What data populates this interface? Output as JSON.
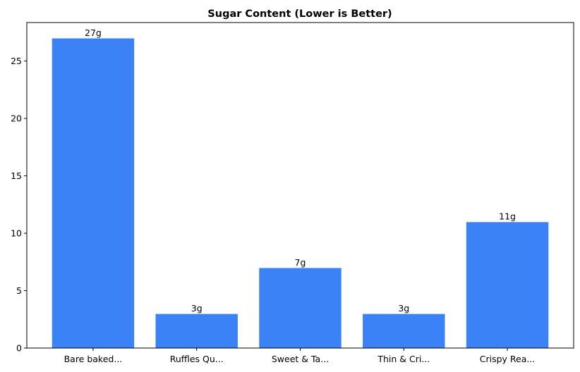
{
  "chart_data": {
    "type": "bar",
    "title": "Sugar Content (Lower is Better)",
    "xlabel": "",
    "ylabel": "",
    "categories": [
      "Bare baked...",
      "Ruffles Qu...",
      "Sweet & Ta...",
      "Thin & Cri...",
      "Crispy Rea..."
    ],
    "values": [
      27,
      3,
      7,
      3,
      11
    ],
    "data_labels": [
      "27g",
      "3g",
      "7g",
      "3g",
      "11g"
    ],
    "ylim": [
      0,
      28.35
    ],
    "yticks": [
      0,
      5,
      10,
      15,
      20,
      25
    ],
    "grid": false,
    "colors": {
      "bar": "#3b82f6"
    }
  }
}
